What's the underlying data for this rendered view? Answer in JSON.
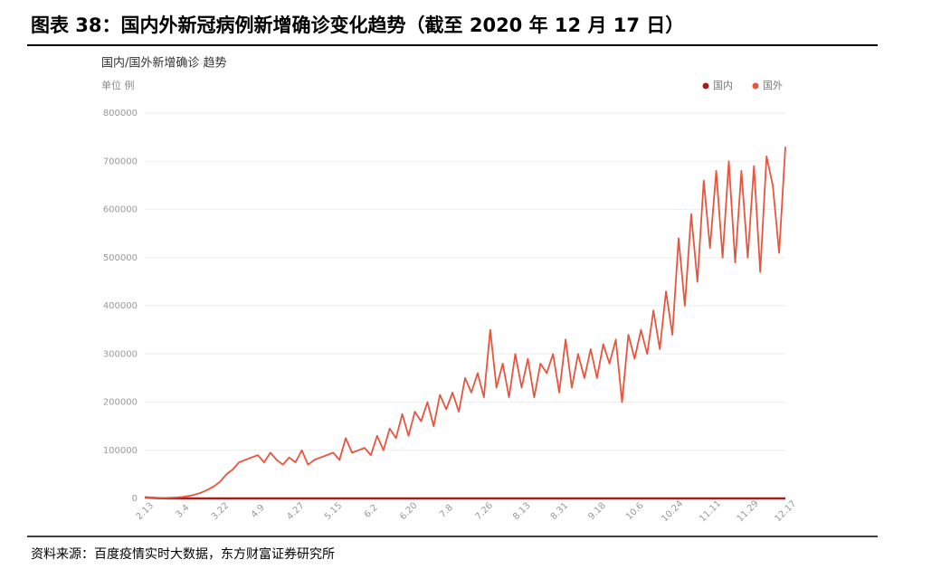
{
  "header": {
    "title": "图表 38：国内外新冠病例新增确诊变化趋势（截至 2020 年 12 月 17 日）"
  },
  "chart_data": {
    "type": "line",
    "title": "国内/国外新增确诊 趋势",
    "y_unit": "单位 例",
    "categories": [
      "2.13",
      null,
      null,
      null,
      null,
      null,
      "3.4",
      null,
      null,
      null,
      null,
      null,
      "3.22",
      null,
      null,
      null,
      null,
      null,
      "4.9",
      null,
      null,
      null,
      null,
      null,
      "4.27",
      null,
      null,
      null,
      null,
      null,
      "5.15",
      null,
      null,
      null,
      null,
      null,
      "6.2",
      null,
      null,
      null,
      null,
      null,
      "6.20",
      null,
      null,
      null,
      null,
      null,
      "7.8",
      null,
      null,
      null,
      null,
      null,
      "7.26",
      null,
      null,
      null,
      null,
      null,
      "8.13",
      null,
      null,
      null,
      null,
      null,
      "8.31",
      null,
      null,
      null,
      null,
      null,
      "9.18",
      null,
      null,
      null,
      null,
      null,
      "10.6",
      null,
      null,
      null,
      null,
      null,
      "10.24",
      null,
      null,
      null,
      null,
      null,
      "11.11",
      null,
      null,
      null,
      null,
      null,
      "11.29",
      null,
      null,
      null,
      null,
      null,
      "12.17"
    ],
    "series": [
      {
        "name": "国内",
        "color": "#a5201d",
        "values": [
          2000,
          1500,
          800,
          400,
          200,
          100,
          50,
          40,
          60,
          80,
          50,
          40,
          60,
          30,
          40,
          20,
          30,
          20,
          40,
          30,
          20,
          10,
          10,
          20,
          10,
          10,
          10,
          10,
          20,
          10,
          10,
          20,
          10,
          10,
          20,
          40,
          30,
          20,
          20,
          10,
          10,
          20,
          10,
          20,
          30,
          20,
          20,
          30,
          40,
          60,
          50,
          40,
          60,
          50,
          40,
          30,
          20,
          20,
          30,
          20,
          20,
          30,
          20,
          20,
          20,
          10,
          20,
          20,
          10,
          10,
          20,
          10,
          20,
          20,
          10,
          10,
          20,
          20,
          20,
          30,
          20,
          20,
          30,
          40,
          30,
          30,
          20,
          20,
          20,
          30,
          20,
          20,
          20,
          20,
          30,
          20,
          20,
          30,
          20,
          30,
          20,
          20,
          20
        ]
      },
      {
        "name": "国外",
        "color": "#e8553f",
        "values": [
          2000,
          1500,
          1000,
          1000,
          1500,
          2000,
          3000,
          5000,
          8000,
          12000,
          18000,
          25000,
          35000,
          50000,
          60000,
          75000,
          80000,
          85000,
          90000,
          75000,
          95000,
          80000,
          70000,
          85000,
          75000,
          100000,
          70000,
          80000,
          85000,
          90000,
          95000,
          80000,
          125000,
          95000,
          100000,
          105000,
          90000,
          130000,
          100000,
          145000,
          125000,
          175000,
          130000,
          180000,
          160000,
          200000,
          150000,
          215000,
          185000,
          220000,
          180000,
          250000,
          220000,
          260000,
          210000,
          350000,
          230000,
          280000,
          210000,
          300000,
          230000,
          290000,
          210000,
          280000,
          260000,
          300000,
          220000,
          330000,
          230000,
          300000,
          250000,
          310000,
          250000,
          320000,
          280000,
          330000,
          200000,
          340000,
          290000,
          350000,
          300000,
          390000,
          310000,
          430000,
          340000,
          540000,
          400000,
          590000,
          450000,
          660000,
          520000,
          680000,
          500000,
          700000,
          490000,
          680000,
          500000,
          690000,
          470000,
          710000,
          650000,
          510000,
          730000
        ]
      }
    ],
    "ylim": [
      0,
      800000
    ],
    "yticks": [
      0,
      100000,
      200000,
      300000,
      400000,
      500000,
      600000,
      700000,
      800000
    ],
    "grid": true,
    "legend": "top-right"
  },
  "source": "资料来源：百度疫情实时大数据，东方财富证券研究所"
}
